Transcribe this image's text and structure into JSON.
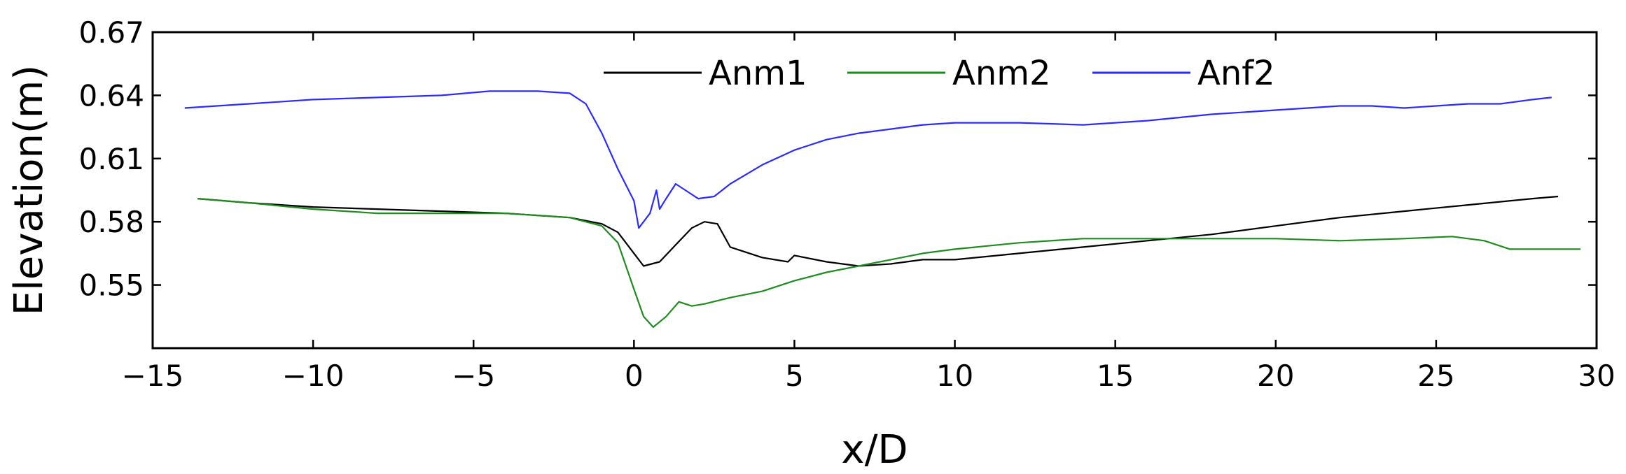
{
  "chart_data": {
    "type": "line",
    "xlabel": "x/D",
    "ylabel": "Elevation(m)",
    "xlim": [
      -15,
      30
    ],
    "ylim": [
      0.52,
      0.67
    ],
    "xticks": [
      -15,
      -10,
      -5,
      0,
      5,
      10,
      15,
      20,
      25,
      30
    ],
    "xtick_labels": [
      "−15",
      "−10",
      "−5",
      "0",
      "5",
      "10",
      "15",
      "20",
      "25",
      "30"
    ],
    "yticks": [
      0.55,
      0.58,
      0.61,
      0.64,
      0.67
    ],
    "ytick_labels": [
      "0.55",
      "0.58",
      "0.61",
      "0.64",
      "0.67"
    ],
    "grid": false,
    "legend_position": "top-center",
    "series": [
      {
        "name": "Anm1",
        "color": "#000000",
        "x": [
          -13.6,
          -12,
          -10,
          -8,
          -6,
          -4,
          -2,
          -1,
          -0.5,
          0,
          0.3,
          0.8,
          1.3,
          1.8,
          2.2,
          2.6,
          3,
          4,
          4.8,
          5,
          6,
          7,
          8,
          9,
          10,
          12,
          14,
          16,
          18,
          20,
          22,
          24,
          26,
          28,
          28.8
        ],
        "y": [
          0.591,
          0.589,
          0.587,
          0.586,
          0.585,
          0.584,
          0.582,
          0.579,
          0.575,
          0.565,
          0.559,
          0.561,
          0.569,
          0.577,
          0.58,
          0.579,
          0.568,
          0.563,
          0.561,
          0.564,
          0.561,
          0.559,
          0.56,
          0.562,
          0.562,
          0.565,
          0.568,
          0.571,
          0.574,
          0.578,
          0.582,
          0.585,
          0.588,
          0.591,
          0.592
        ]
      },
      {
        "name": "Anm2",
        "color": "#1e8c1e",
        "x": [
          -13.6,
          -12,
          -10,
          -8,
          -6,
          -4,
          -2,
          -1,
          -0.5,
          0,
          0.3,
          0.6,
          1,
          1.4,
          1.8,
          2.2,
          3,
          4,
          5,
          6,
          7,
          8,
          9,
          10,
          12,
          14,
          16,
          18,
          20,
          22,
          24,
          25.5,
          26.5,
          27.3,
          28,
          29.5
        ],
        "y": [
          0.591,
          0.589,
          0.586,
          0.584,
          0.584,
          0.584,
          0.582,
          0.578,
          0.57,
          0.548,
          0.535,
          0.53,
          0.535,
          0.542,
          0.54,
          0.541,
          0.544,
          0.547,
          0.552,
          0.556,
          0.559,
          0.562,
          0.565,
          0.567,
          0.57,
          0.572,
          0.572,
          0.572,
          0.572,
          0.571,
          0.572,
          0.573,
          0.571,
          0.567,
          0.567,
          0.567
        ]
      },
      {
        "name": "Anf2",
        "color": "#2b2bff",
        "x": [
          -14,
          -12,
          -10,
          -8,
          -6,
          -4.5,
          -3,
          -2,
          -1.5,
          -1,
          -0.5,
          0,
          0.15,
          0.5,
          0.7,
          0.8,
          1.0,
          1.3,
          1.7,
          2.0,
          2.5,
          3,
          4,
          5,
          6,
          7,
          8,
          9,
          10,
          12,
          14,
          16,
          18,
          20,
          22,
          23,
          24,
          25,
          26,
          27,
          28,
          28.6
        ],
        "y": [
          0.634,
          0.636,
          0.638,
          0.639,
          0.64,
          0.642,
          0.642,
          0.641,
          0.636,
          0.622,
          0.605,
          0.59,
          0.577,
          0.584,
          0.595,
          0.586,
          0.591,
          0.598,
          0.594,
          0.591,
          0.592,
          0.598,
          0.607,
          0.614,
          0.619,
          0.622,
          0.624,
          0.626,
          0.627,
          0.627,
          0.626,
          0.628,
          0.631,
          0.633,
          0.635,
          0.635,
          0.634,
          0.635,
          0.636,
          0.636,
          0.638,
          0.639
        ]
      }
    ]
  }
}
